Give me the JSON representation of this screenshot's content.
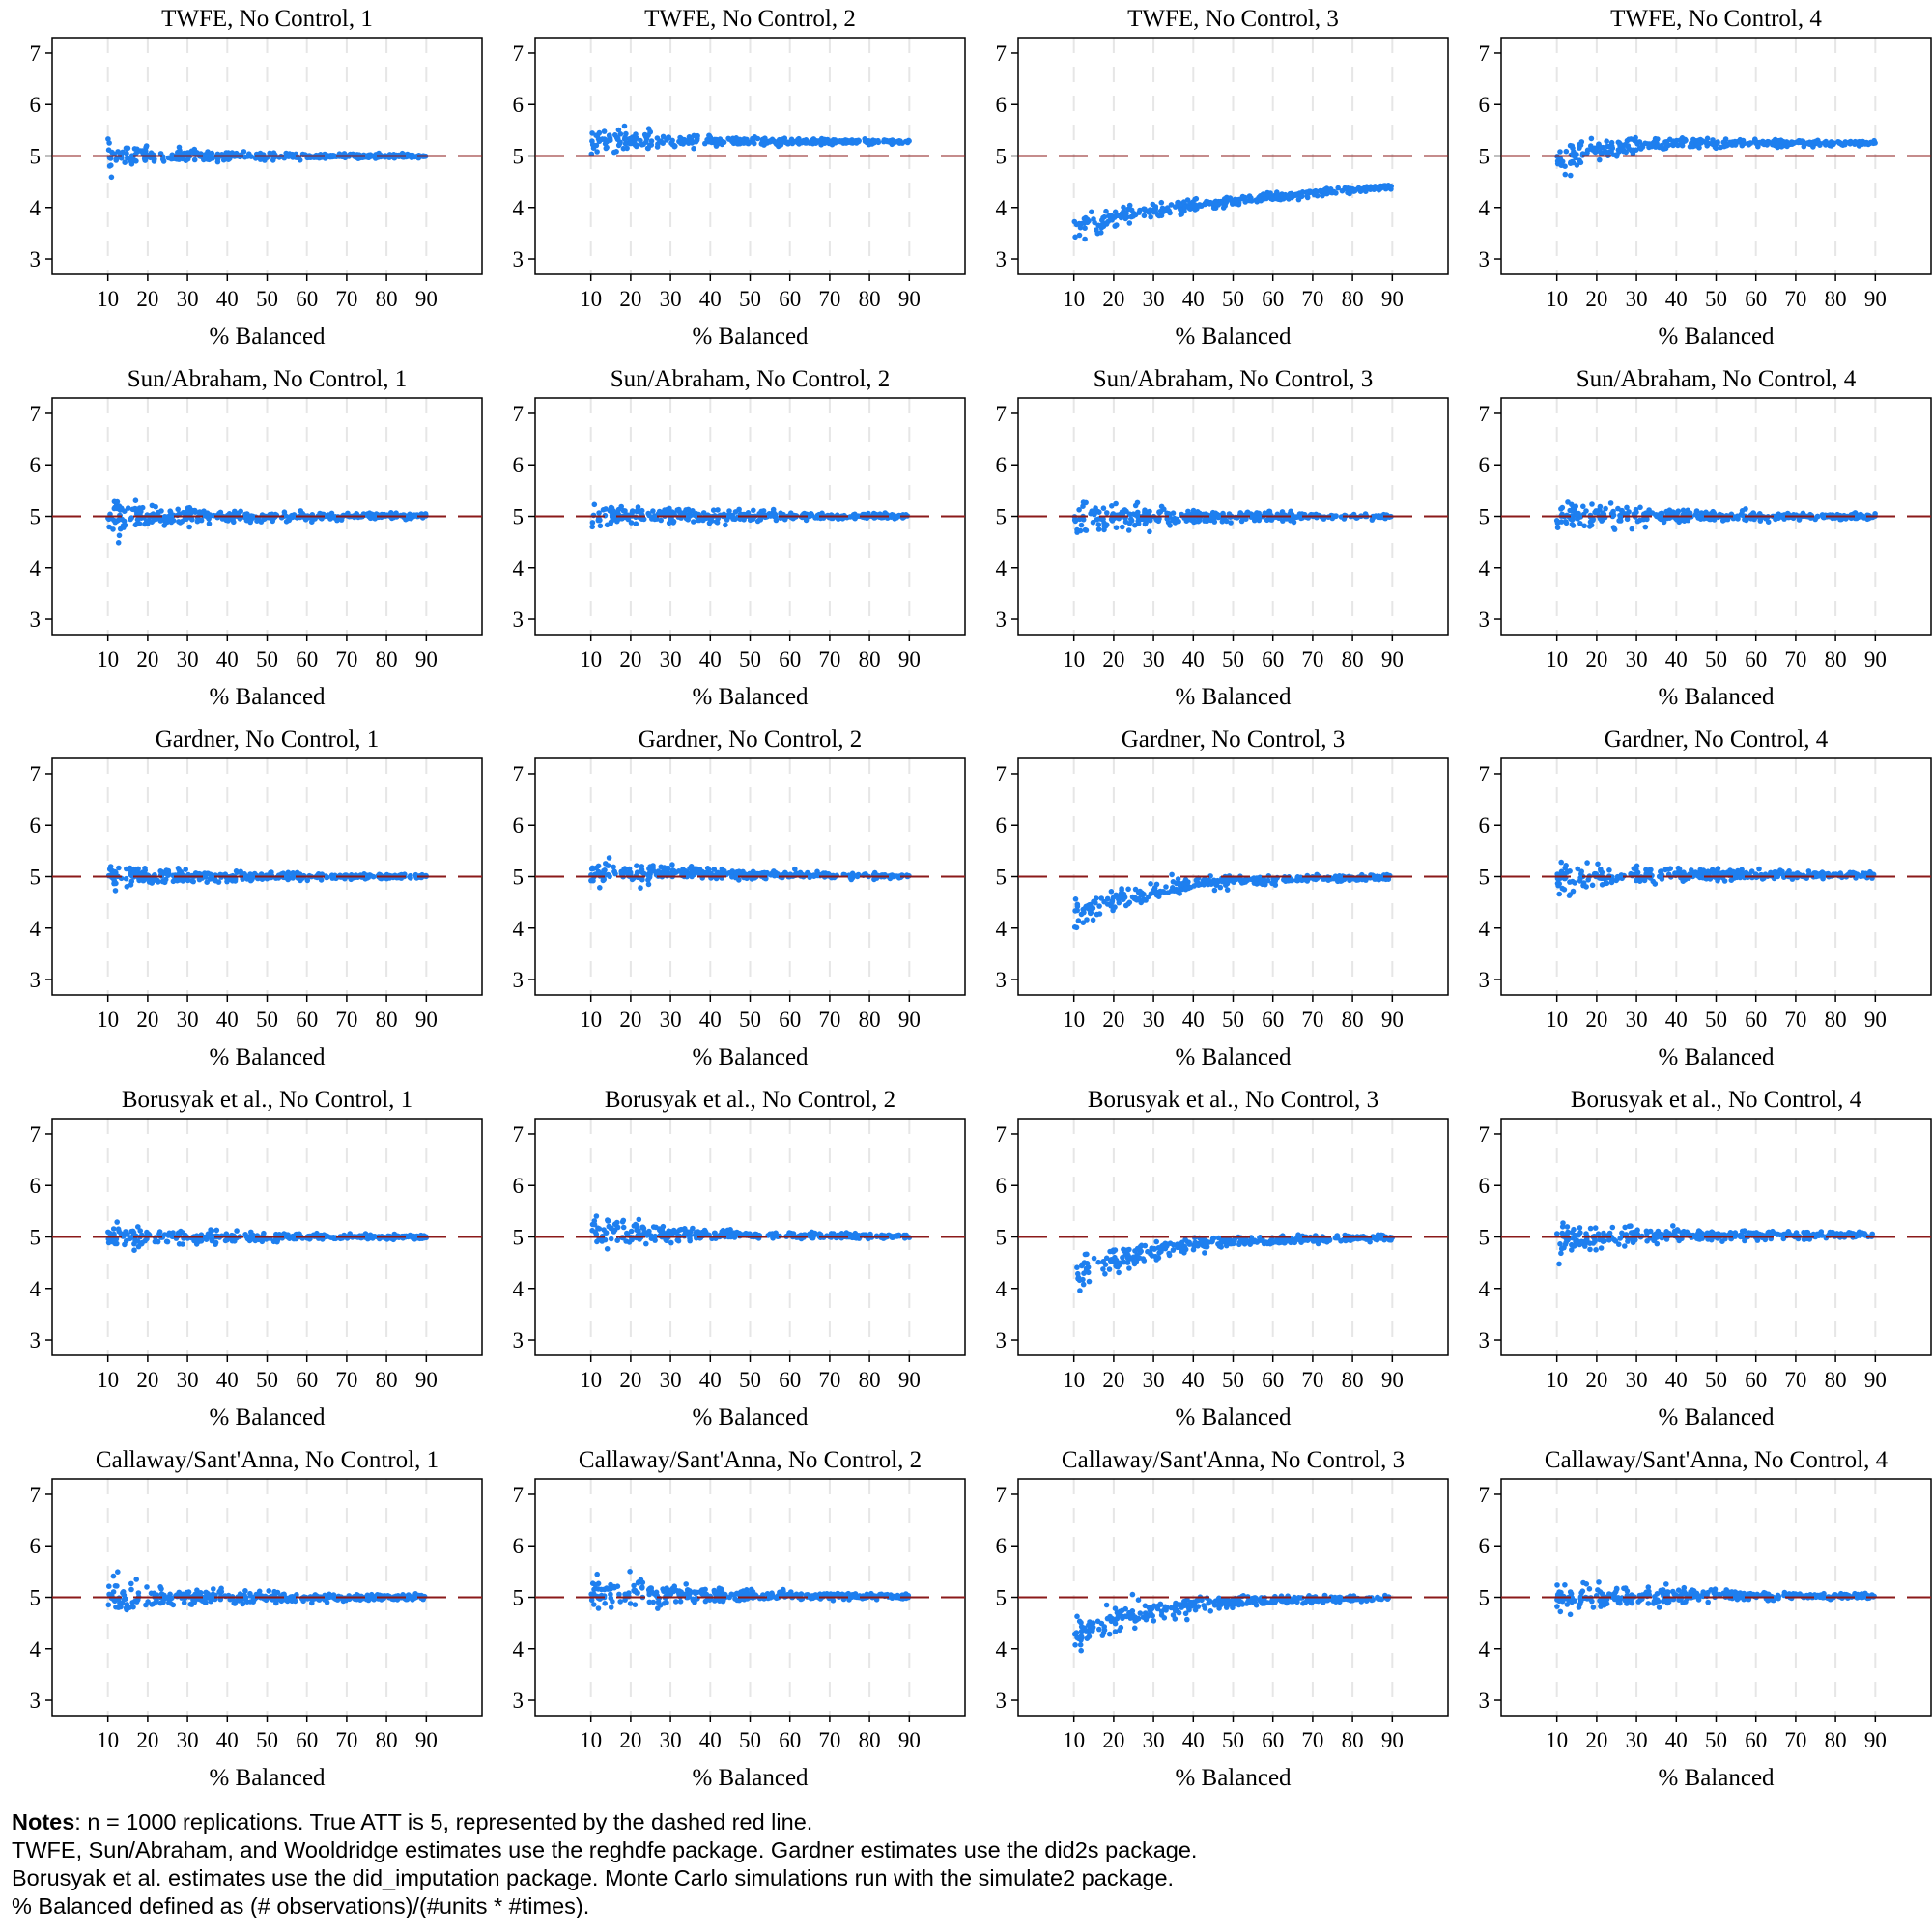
{
  "chart_data": {
    "type": "scatter",
    "layout": {
      "rows": 5,
      "cols": 4
    },
    "shared_axes": {
      "xlabel": "% Balanced",
      "xticks": [
        10,
        20,
        30,
        40,
        50,
        60,
        70,
        80,
        90
      ],
      "xlim": [
        -4,
        104
      ],
      "yticks": [
        3,
        4,
        5,
        6,
        7
      ],
      "ylim": [
        2.7,
        7.3
      ],
      "grid": "vertical dashed",
      "reference_line": {
        "y": 5,
        "style": "dashed",
        "color": "#8b1a1a"
      }
    },
    "point_color": "#1e7fef",
    "panels": [
      {
        "title": "TWFE, No Control, 1",
        "estimator": "TWFE",
        "scenario": 1,
        "bias": 0.0,
        "recovery": 0,
        "spread": 0.2
      },
      {
        "title": "TWFE, No Control, 2",
        "estimator": "TWFE",
        "scenario": 2,
        "bias": 0.28,
        "recovery": 0,
        "spread": 0.22
      },
      {
        "title": "TWFE, No Control, 3",
        "estimator": "TWFE",
        "scenario": 3,
        "bias": -1.5,
        "recovery": 0.62,
        "spread": 0.28
      },
      {
        "title": "TWFE, No Control, 4",
        "estimator": "TWFE",
        "scenario": 4,
        "bias": -0.1,
        "recovery": -0.38,
        "spread": 0.25
      },
      {
        "title": "Sun/Abraham, No Control, 1",
        "estimator": "Sun/Abraham",
        "scenario": 1,
        "bias": 0.0,
        "recovery": 0,
        "spread": 0.28
      },
      {
        "title": "Sun/Abraham, No Control, 2",
        "estimator": "Sun/Abraham",
        "scenario": 2,
        "bias": 0.0,
        "recovery": 0,
        "spread": 0.28
      },
      {
        "title": "Sun/Abraham, No Control, 3",
        "estimator": "Sun/Abraham",
        "scenario": 3,
        "bias": 0.0,
        "recovery": 0,
        "spread": 0.28
      },
      {
        "title": "Sun/Abraham, No Control, 4",
        "estimator": "Sun/Abraham",
        "scenario": 4,
        "bias": 0.0,
        "recovery": 0,
        "spread": 0.28
      },
      {
        "title": "Gardner, No Control, 1",
        "estimator": "Gardner",
        "scenario": 1,
        "bias": 0.0,
        "recovery": 0,
        "spread": 0.22
      },
      {
        "title": "Gardner, No Control, 2",
        "estimator": "Gardner",
        "scenario": 2,
        "bias": 0.12,
        "recovery": 1,
        "spread": 0.24
      },
      {
        "title": "Gardner, No Control, 3",
        "estimator": "Gardner",
        "scenario": 3,
        "bias": -0.8,
        "recovery": 1,
        "spread": 0.3
      },
      {
        "title": "Gardner, No Control, 4",
        "estimator": "Gardner",
        "scenario": 4,
        "bias": -0.1,
        "recovery": 1,
        "spread": 0.3
      },
      {
        "title": "Borusyak et al., No Control, 1",
        "estimator": "Borusyak et al.",
        "scenario": 1,
        "bias": 0.0,
        "recovery": 0,
        "spread": 0.22
      },
      {
        "title": "Borusyak et al., No Control, 2",
        "estimator": "Borusyak et al.",
        "scenario": 2,
        "bias": 0.12,
        "recovery": 1,
        "spread": 0.24
      },
      {
        "title": "Borusyak et al., No Control, 3",
        "estimator": "Borusyak et al.",
        "scenario": 3,
        "bias": -0.8,
        "recovery": 1,
        "spread": 0.3
      },
      {
        "title": "Borusyak et al., No Control, 4",
        "estimator": "Borusyak et al.",
        "scenario": 4,
        "bias": -0.1,
        "recovery": 1,
        "spread": 0.3
      },
      {
        "title": "Callaway/Sant'Anna, No Control, 1",
        "estimator": "Callaway/Sant'Anna",
        "scenario": 1,
        "bias": 0.0,
        "recovery": 0,
        "spread": 0.3
      },
      {
        "title": "Callaway/Sant'Anna, No Control, 2",
        "estimator": "Callaway/Sant'Anna",
        "scenario": 2,
        "bias": 0.06,
        "recovery": 1,
        "spread": 0.3
      },
      {
        "title": "Callaway/Sant'Anna, No Control, 3",
        "estimator": "Callaway/Sant'Anna",
        "scenario": 3,
        "bias": -0.8,
        "recovery": 1,
        "spread": 0.32
      },
      {
        "title": "Callaway/Sant'Anna, No Control, 4",
        "estimator": "Callaway/Sant'Anna",
        "scenario": 4,
        "bias": -0.05,
        "recovery": 1,
        "spread": 0.3
      }
    ]
  },
  "notes": {
    "label": "Notes",
    "line1": ": n = 1000 replications. True ATT is 5, represented by the dashed red line.",
    "line2": "TWFE, Sun/Abraham, and Wooldridge estimates use the reghdfe package. Gardner estimates use the did2s package.",
    "line3": "Borusyak et al. estimates use the did_imputation package. Monte Carlo simulations run with the simulate2 package.",
    "line4": "% Balanced defined as (# observations)/(#units * #times)."
  }
}
